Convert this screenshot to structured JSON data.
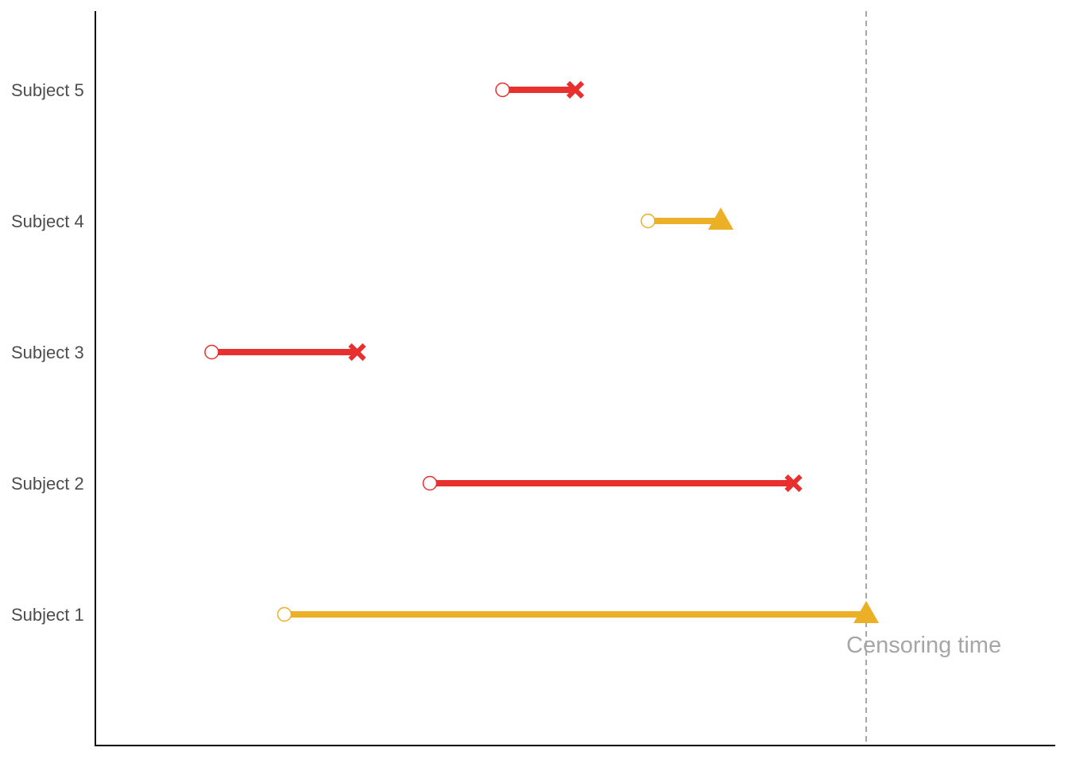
{
  "colors": {
    "event": "#e8302e",
    "censored": "#ebb025",
    "start_marker_fill": "#ffffff",
    "axis": "#000000",
    "censor_line": "#a6a6a6"
  },
  "chart_data": {
    "type": "timeline",
    "title": "",
    "xlabel": "",
    "ylabel": "",
    "xlim": [
      0,
      13.2
    ],
    "censoring_time": 10.6,
    "annotation": "Censoring time",
    "subjects": [
      {
        "label": "Subject 1",
        "start": 2.6,
        "end": 10.6,
        "outcome": "censored",
        "end_marker": "triangle-icon"
      },
      {
        "label": "Subject 2",
        "start": 4.6,
        "end": 9.6,
        "outcome": "event",
        "end_marker": "x-icon"
      },
      {
        "label": "Subject 3",
        "start": 1.6,
        "end": 3.6,
        "outcome": "event",
        "end_marker": "x-icon"
      },
      {
        "label": "Subject 4",
        "start": 7.6,
        "end": 8.6,
        "outcome": "censored",
        "end_marker": "triangle-icon"
      },
      {
        "label": "Subject 5",
        "start": 5.6,
        "end": 6.6,
        "outcome": "event",
        "end_marker": "x-icon"
      }
    ]
  }
}
